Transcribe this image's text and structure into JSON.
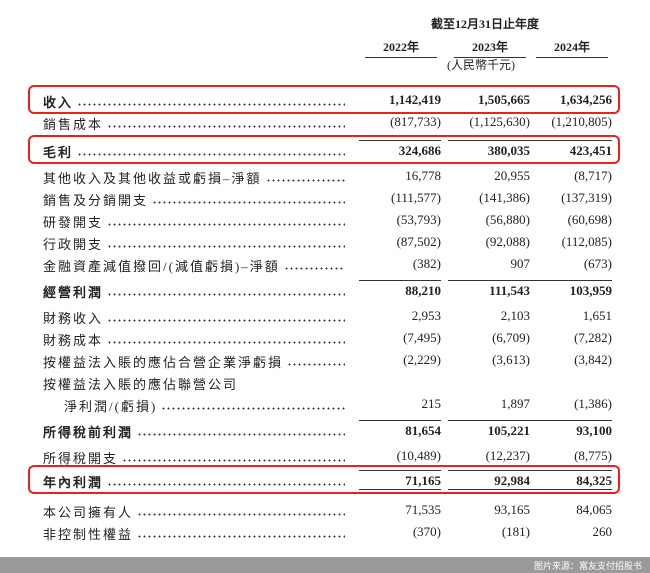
{
  "header": {
    "period": "截至12月31日止年度",
    "years": [
      "2022年",
      "2023年",
      "2024年"
    ],
    "unit": "(人民幣千元)"
  },
  "rows": [
    {
      "label": "收入",
      "values": [
        "1,142,419",
        "1,505,665",
        "1,634,256"
      ],
      "bold": true,
      "highlight": true
    },
    {
      "label": "銷售成本",
      "values": [
        "(817,733)",
        "(1,125,630)",
        "(1,210,805)"
      ]
    },
    {
      "label": "毛利",
      "values": [
        "324,686",
        "380,035",
        "423,451"
      ],
      "bold": true,
      "highlight": true
    },
    {
      "label": "其他收入及其他收益或虧損–淨額",
      "values": [
        "16,778",
        "20,955",
        "(8,717)"
      ]
    },
    {
      "label": "銷售及分銷開支",
      "values": [
        "(111,577)",
        "(141,386)",
        "(137,319)"
      ]
    },
    {
      "label": "研發開支",
      "values": [
        "(53,793)",
        "(56,880)",
        "(60,698)"
      ]
    },
    {
      "label": "行政開支",
      "values": [
        "(87,502)",
        "(92,088)",
        "(112,085)"
      ]
    },
    {
      "label": "金融資產減值撥回/(減值虧損)–淨額",
      "values": [
        "(382)",
        "907",
        "(673)"
      ]
    },
    {
      "label": "經營利潤",
      "values": [
        "88,210",
        "111,543",
        "103,959"
      ],
      "bold": true
    },
    {
      "label": "財務收入",
      "values": [
        "2,953",
        "2,103",
        "1,651"
      ]
    },
    {
      "label": "財務成本",
      "values": [
        "(7,495)",
        "(6,709)",
        "(7,282)"
      ]
    },
    {
      "label": "按權益法入賬的應佔合營企業淨虧損",
      "values": [
        "(2,229)",
        "(3,613)",
        "(3,842)"
      ]
    },
    {
      "label": "按權益法入賬的應佔聯營公司"
    },
    {
      "label": "淨利潤/(虧損)",
      "values": [
        "215",
        "1,897",
        "(1,386)"
      ],
      "indent": true
    },
    {
      "label": "所得稅前利潤",
      "values": [
        "81,654",
        "105,221",
        "93,100"
      ],
      "bold": true
    },
    {
      "label": "所得稅開支",
      "values": [
        "(10,489)",
        "(12,237)",
        "(8,775)"
      ]
    },
    {
      "label": "年內利潤",
      "values": [
        "71,165",
        "92,984",
        "84,325"
      ],
      "bold": true,
      "highlight": true
    },
    {
      "label": "本公司擁有人",
      "values": [
        "71,535",
        "93,165",
        "84,065"
      ]
    },
    {
      "label": "非控制性權益",
      "values": [
        "(370)",
        "(181)",
        "260"
      ]
    }
  ],
  "footer": {
    "source": "图片来源：富友支付招股书"
  }
}
